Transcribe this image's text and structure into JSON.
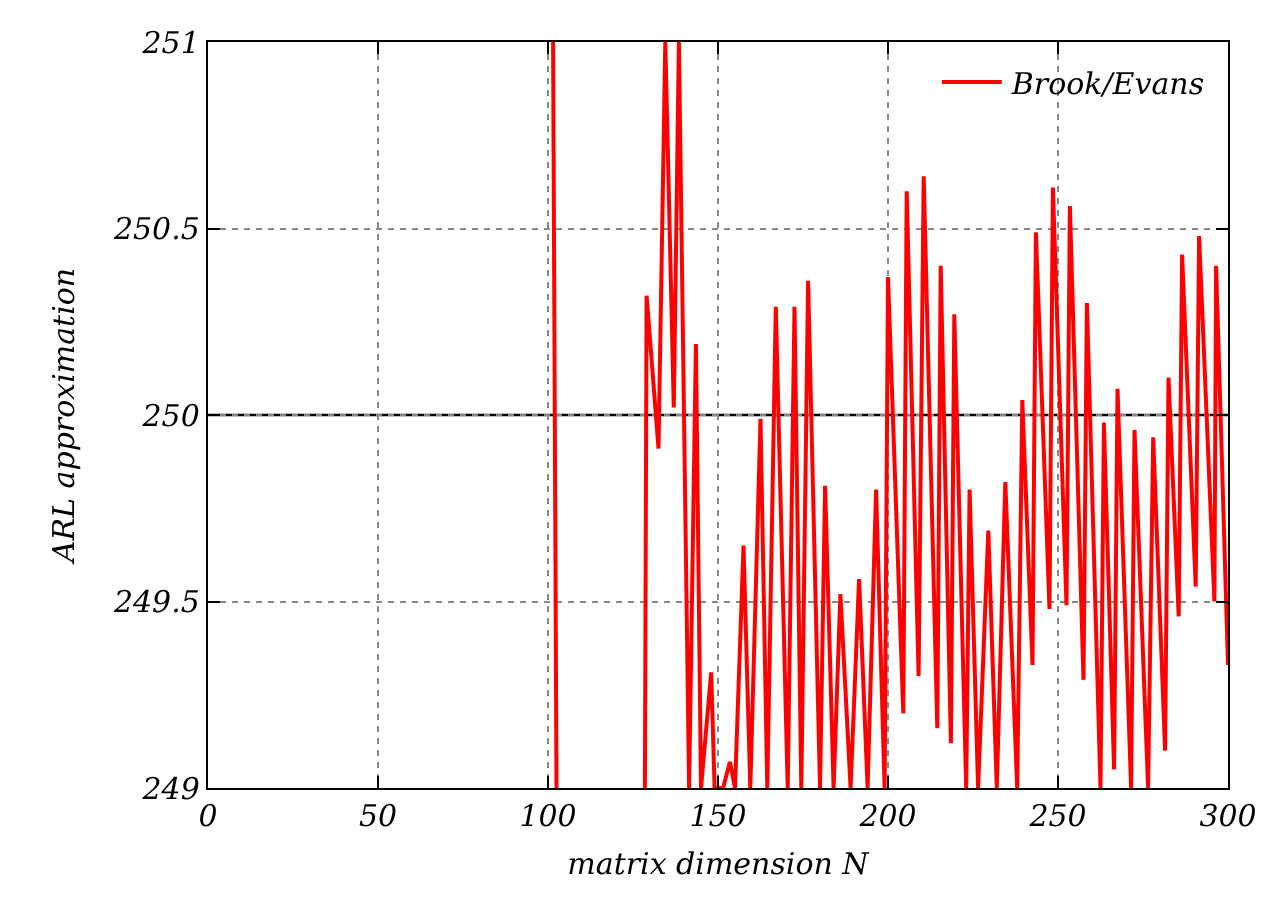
{
  "chart_data": {
    "type": "line",
    "xlabel": "matrix dimension N",
    "ylabel": "ARL approximation",
    "xlim": [
      0,
      300
    ],
    "xticks": [
      0,
      50,
      100,
      150,
      200,
      250,
      300
    ],
    "ylim": [
      249,
      251
    ],
    "yticks": [
      249,
      249.5,
      250,
      250.5,
      251
    ],
    "grid": true,
    "legend": "top right",
    "line_style": "solid",
    "marker": "none",
    "ref_lines": [
      {
        "axis": "y",
        "value": 250,
        "color": "#000000",
        "line_style": "solid"
      }
    ],
    "series": [
      {
        "name": "Brook/Evans",
        "color": "#ff0000",
        "x": [
          101.5,
          102.5,
          115,
          128.5,
          129,
          132.5,
          134.5,
          137,
          138.5,
          141.5,
          143.5,
          145,
          148,
          149,
          151.5,
          153.5,
          155,
          157.5,
          159.5,
          162.5,
          164.5,
          167,
          170.5,
          172.5,
          174.5,
          176.5,
          180,
          181.5,
          184,
          186,
          189,
          191.5,
          194,
          196.5,
          199,
          200,
          204.5,
          205.5,
          209,
          210.5,
          214.5,
          215.5,
          218.5,
          219.5,
          223,
          224,
          226.5,
          229.5,
          232,
          234.5,
          238,
          239.5,
          242.5,
          243.5,
          247.5,
          248.5,
          252.5,
          253.5,
          257.5,
          258.5,
          262.5,
          263.5,
          266.5,
          267.5,
          271.5,
          272.5,
          276.5,
          278,
          281.5,
          282.5,
          285.5,
          286.5,
          290.5,
          291.5,
          296,
          296.5,
          300
        ],
        "values": [
          251,
          249,
          null,
          249,
          250.32,
          249.91,
          251,
          250.02,
          251,
          249,
          250.19,
          249,
          249.31,
          249,
          249,
          249.07,
          249,
          249.65,
          249,
          249.99,
          249,
          250.29,
          249,
          250.29,
          249,
          250.36,
          249,
          249.81,
          249,
          249.52,
          249,
          249.56,
          249,
          249.8,
          249,
          250.37,
          249.2,
          250.6,
          249.3,
          250.64,
          249.16,
          250.4,
          249.12,
          250.27,
          249,
          249.8,
          249,
          249.69,
          249,
          249.82,
          249,
          250.04,
          249.33,
          250.49,
          249.48,
          250.61,
          249.49,
          250.56,
          249.29,
          250.3,
          249,
          249.98,
          249.05,
          250.07,
          249,
          249.96,
          249,
          249.94,
          249.1,
          250.1,
          249.46,
          250.43,
          249.54,
          250.48,
          249.5,
          250.4,
          249.33
        ]
      }
    ]
  }
}
